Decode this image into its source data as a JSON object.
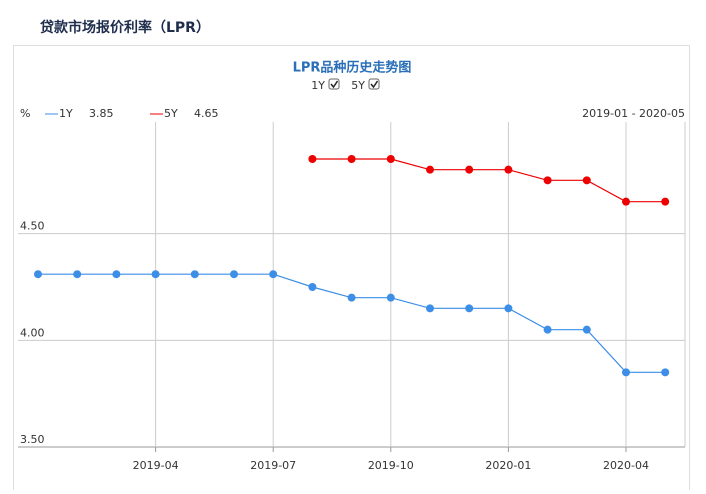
{
  "header": {
    "title": "贷款市场报价利率（LPR）"
  },
  "chart_data": {
    "type": "line",
    "title": "LPR品种历史走势图",
    "unit": "%",
    "range_label": "2019-01 - 2020-05",
    "toggles": [
      "1Y",
      "5Y"
    ],
    "categories": [
      null,
      null,
      null,
      "2019-04",
      null,
      null,
      "2019-07",
      null,
      null,
      "2019-10",
      null,
      null,
      "2020-01",
      null,
      null,
      "2020-04",
      null
    ],
    "series": [
      {
        "name": "1Y",
        "color": "#3d8ee6",
        "values": [
          4.31,
          4.31,
          4.31,
          4.31,
          4.31,
          4.31,
          4.31,
          4.25,
          4.2,
          4.2,
          4.15,
          4.15,
          4.15,
          4.05,
          4.05,
          3.85,
          3.85
        ]
      },
      {
        "name": "5Y",
        "color": "#ee0000",
        "values": [
          null,
          null,
          null,
          null,
          null,
          null,
          null,
          4.85,
          4.85,
          4.85,
          4.8,
          4.8,
          4.8,
          4.75,
          4.75,
          4.65,
          4.65
        ]
      }
    ],
    "ylim": [
      3.5,
      5.0
    ],
    "yticks": [
      {
        "value": 3.5,
        "label": "3.50"
      },
      {
        "value": 4.0,
        "label": "4.00"
      },
      {
        "value": 4.5,
        "label": "4.50"
      }
    ],
    "grid": true
  }
}
